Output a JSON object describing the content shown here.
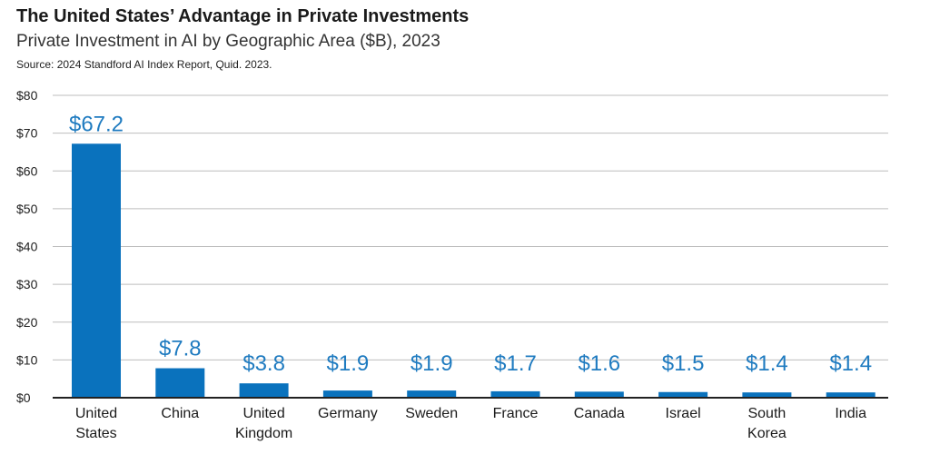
{
  "header": {
    "title": "The United States’ Advantage in Private Investments",
    "subtitle": "Private Investment in AI by Geographic Area ($B), 2023",
    "source": "Source: 2024 Standford AI Index Report, Quid. 2023."
  },
  "chart_data": {
    "type": "bar",
    "title": "The United States’ Advantage in Private Investments",
    "subtitle": "Private Investment in AI by Geographic Area ($B), 2023",
    "categories": [
      [
        "United",
        "States"
      ],
      [
        "China"
      ],
      [
        "United",
        "Kingdom"
      ],
      [
        "Germany"
      ],
      [
        "Sweden"
      ],
      [
        "France"
      ],
      [
        "Canada"
      ],
      [
        "Israel"
      ],
      [
        "South",
        "Korea"
      ],
      [
        "India"
      ]
    ],
    "values": [
      67.2,
      7.8,
      3.8,
      1.9,
      1.9,
      1.7,
      1.6,
      1.5,
      1.4,
      1.4
    ],
    "data_labels": [
      "$67.2",
      "$7.8",
      "$3.8",
      "$1.9",
      "$1.9",
      "$1.7",
      "$1.6",
      "$1.5",
      "$1.4",
      "$1.4"
    ],
    "yticks": [
      0,
      10,
      20,
      30,
      40,
      50,
      60,
      70,
      80
    ],
    "ytick_labels": [
      "$0",
      "$10",
      "$20",
      "$30",
      "$40",
      "$50",
      "$60",
      "$70",
      "$80"
    ],
    "ylim": [
      0,
      80
    ],
    "grid": true,
    "colors": {
      "bar": "#0a72bd",
      "label": "#1f7bc0",
      "grid": "#bdbdbd",
      "axis": "#222222"
    }
  }
}
